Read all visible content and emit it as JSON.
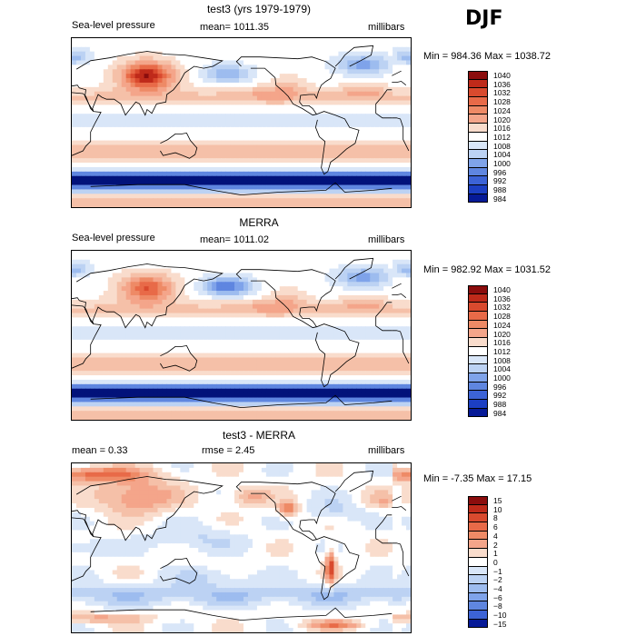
{
  "season": "DJF",
  "colors": {
    "pos": [
      "#f9dccc",
      "#f5c0a8",
      "#f4a58a",
      "#ee8a66",
      "#e86a48",
      "#d94a2e",
      "#bf2a1a",
      "#8b0d0d"
    ],
    "neg": [
      "#d9e6f8",
      "#bcd2f3",
      "#9dbcef",
      "#7fa3ea",
      "#5f86e0",
      "#3c63d6",
      "#1c3fc3",
      "#061a97",
      "#02127a"
    ],
    "mid": "#ffffff"
  },
  "panels": [
    {
      "title": "test3 (yrs 1979-1979)",
      "left_label": "Sea-level pressure",
      "mid_label": "mean= 1011.35",
      "units": "millibars",
      "stats": "Min = 984.36 Max = 1038.72"
    },
    {
      "title": "MERRA",
      "left_label": "Sea-level pressure",
      "mid_label": "mean= 1011.02",
      "units": "millibars",
      "stats": "Min = 982.92 Max = 1031.52"
    },
    {
      "title": "test3 - MERRA",
      "left_label": "mean =    0.33",
      "mid_label": "rmse =    2.45",
      "units": "millibars",
      "stats": "Min =  -7.35 Max =  17.15"
    }
  ],
  "chart_data": [
    {
      "type": "heatmap",
      "title": "test3 (yrs 1979-1979)",
      "variable": "Sea-level pressure",
      "units": "millibars",
      "mean": 1011.35,
      "min": 984.36,
      "max": 1038.72,
      "colorbar_levels": [
        1040,
        1036,
        1032,
        1028,
        1024,
        1020,
        1016,
        1012,
        1008,
        1004,
        1000,
        996,
        992,
        988,
        984
      ],
      "colorbar_colors": [
        "#8b0d0d",
        "#bf2a1a",
        "#d94a2e",
        "#e86a48",
        "#ee8a66",
        "#f4a58a",
        "#f9dccc",
        "#ffffff",
        "#d9e6f8",
        "#bcd2f3",
        "#7fa3ea",
        "#5f86e0",
        "#3c63d6",
        "#1c3fc3",
        "#061a97"
      ]
    },
    {
      "type": "heatmap",
      "title": "MERRA",
      "variable": "Sea-level pressure",
      "units": "millibars",
      "mean": 1011.02,
      "min": 982.92,
      "max": 1031.52,
      "colorbar_levels": [
        1040,
        1036,
        1032,
        1028,
        1024,
        1020,
        1016,
        1012,
        1008,
        1004,
        1000,
        996,
        992,
        988,
        984
      ],
      "colorbar_colors": [
        "#8b0d0d",
        "#bf2a1a",
        "#d94a2e",
        "#e86a48",
        "#ee8a66",
        "#f4a58a",
        "#f9dccc",
        "#ffffff",
        "#d9e6f8",
        "#bcd2f3",
        "#7fa3ea",
        "#5f86e0",
        "#3c63d6",
        "#1c3fc3",
        "#061a97"
      ]
    },
    {
      "type": "heatmap",
      "title": "test3 - MERRA",
      "units": "millibars",
      "mean": 0.33,
      "rmse": 2.45,
      "min": -7.35,
      "max": 17.15,
      "colorbar_levels": [
        "15",
        "10",
        "8",
        "6",
        "4",
        "2",
        "1",
        "0",
        "−1",
        "−2",
        "−4",
        "−6",
        "−8",
        "−10",
        "−15"
      ],
      "colorbar_colors": [
        "#8b0d0d",
        "#bf2a1a",
        "#d94a2e",
        "#e86a48",
        "#ee8a66",
        "#f4a58a",
        "#f9dccc",
        "#ffffff",
        "#d9e6f8",
        "#bcd2f3",
        "#9dbcef",
        "#7fa3ea",
        "#5f86e0",
        "#3c63d6",
        "#061a97"
      ]
    }
  ]
}
